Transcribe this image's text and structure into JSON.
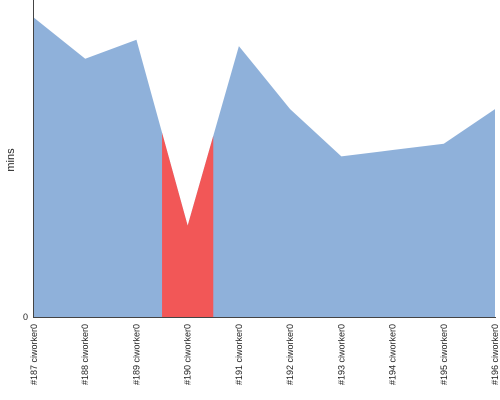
{
  "chart_data": {
    "type": "area",
    "ylabel": "mins",
    "y_tick_labels": [
      "0"
    ],
    "ylim": [
      0,
      100
    ],
    "categories": [
      "#187 ciworker0",
      "#188 ciworker0",
      "#189 ciworker0",
      "#190 ciworker0",
      "#191 ciworker0",
      "#192 ciworker0",
      "#193 ciworker0",
      "#194 ciworker0",
      "#195 ciworker0",
      "#196 ciworker0"
    ],
    "values": [
      95,
      82,
      88,
      29,
      86,
      66,
      51,
      53,
      55,
      66
    ],
    "highlight": {
      "from": 2.5,
      "to": 3.5
    },
    "colors": {
      "fill": "#8fb1da",
      "highlight": "#f25757",
      "axis": "#444444"
    }
  }
}
